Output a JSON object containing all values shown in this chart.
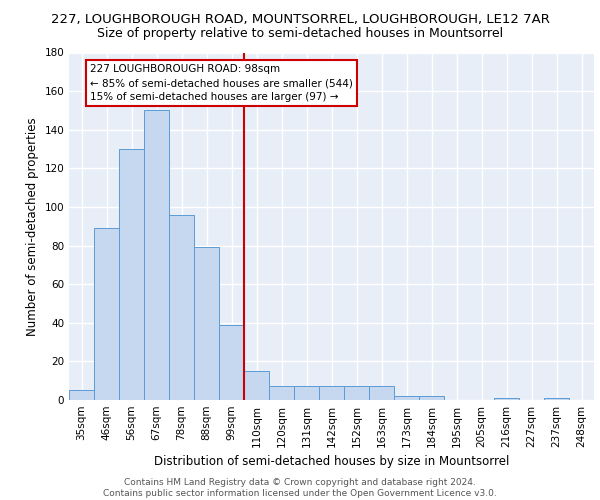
{
  "title_line1": "227, LOUGHBOROUGH ROAD, MOUNTSORREL, LOUGHBOROUGH, LE12 7AR",
  "title_line2": "Size of property relative to semi-detached houses in Mountsorrel",
  "xlabel": "Distribution of semi-detached houses by size in Mountsorrel",
  "ylabel": "Number of semi-detached properties",
  "footnote": "Contains HM Land Registry data © Crown copyright and database right 2024.\nContains public sector information licensed under the Open Government Licence v3.0.",
  "categories": [
    "35sqm",
    "46sqm",
    "56sqm",
    "67sqm",
    "78sqm",
    "88sqm",
    "99sqm",
    "110sqm",
    "120sqm",
    "131sqm",
    "142sqm",
    "152sqm",
    "163sqm",
    "173sqm",
    "184sqm",
    "195sqm",
    "205sqm",
    "216sqm",
    "227sqm",
    "237sqm",
    "248sqm"
  ],
  "values": [
    5,
    89,
    130,
    150,
    96,
    79,
    39,
    15,
    7,
    7,
    7,
    7,
    7,
    2,
    2,
    0,
    0,
    1,
    0,
    1,
    0
  ],
  "bar_color": "#c5d8f0",
  "bar_edge_color": "#5b9bd5",
  "annotation_text_line1": "227 LOUGHBOROUGH ROAD: 98sqm",
  "annotation_text_line2": "← 85% of semi-detached houses are smaller (544)",
  "annotation_text_line3": "15% of semi-detached houses are larger (97) →",
  "annotation_box_color": "#ffffff",
  "annotation_border_color": "#cc0000",
  "property_line_color": "#cc0000",
  "property_line_x": 6.5,
  "ylim": [
    0,
    180
  ],
  "yticks": [
    0,
    20,
    40,
    60,
    80,
    100,
    120,
    140,
    160,
    180
  ],
  "background_color": "#e8eef8",
  "grid_color": "#ffffff",
  "title_fontsize": 9.5,
  "subtitle_fontsize": 9,
  "axis_label_fontsize": 8.5,
  "tick_fontsize": 7.5,
  "footnote_fontsize": 6.5,
  "annotation_fontsize": 7.5
}
